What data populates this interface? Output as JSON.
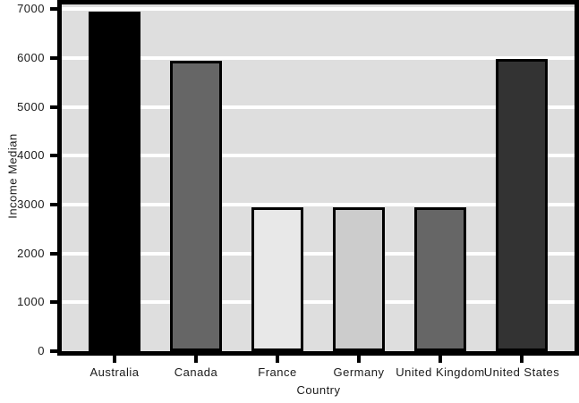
{
  "chart_data": {
    "type": "bar",
    "title": "",
    "categories": [
      "Australia",
      "Canada",
      "France",
      "Germany",
      "United Kingdom",
      "United States"
    ],
    "values": [
      6950,
      5950,
      2950,
      2950,
      2950,
      5980
    ],
    "bar_colors": [
      "#000000",
      "#666666",
      "#e8e8e8",
      "#cccccc",
      "#666666",
      "#333333"
    ],
    "bar_outline_color": "#000000",
    "xlabel": "Country",
    "ylabel": "Income Median",
    "ylim": [
      0,
      7100
    ],
    "yticks": [
      0,
      1000,
      2000,
      3000,
      4000,
      5000,
      6000,
      7000
    ],
    "ytick_labels": [
      "0",
      "1000",
      "2000",
      "3000",
      "4000",
      "5000",
      "6000",
      "7000"
    ],
    "grid": "horizontal gridlines at each y tick",
    "gridline_color": "#ffffff",
    "plot_background": "#dedede",
    "axis_color": "#000000",
    "legend": "none"
  }
}
